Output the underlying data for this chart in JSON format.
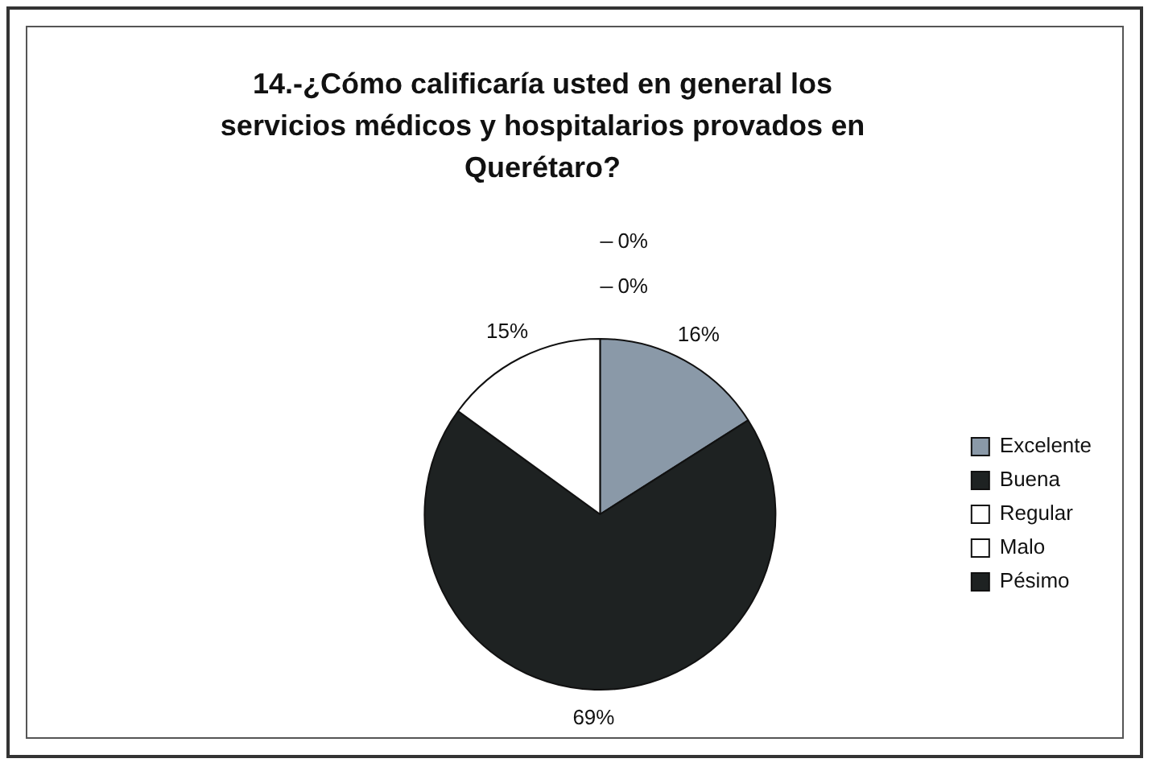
{
  "chart_data": {
    "type": "pie",
    "title": "14.-¿Cómo  calificaría usted en general los servicios médicos y hospitalarios provados en Querétaro?",
    "categories": [
      "Excelente",
      "Buena",
      "Regular",
      "Malo",
      "Pésimo"
    ],
    "values": [
      16,
      69,
      15,
      0,
      0
    ],
    "colors": [
      "#8a99a8",
      "#1e2222",
      "#ffffff",
      "#ffffff",
      "#1e2222"
    ],
    "value_labels": [
      "16%",
      "69%",
      "15%",
      "0%",
      "0%"
    ],
    "legend": "right"
  }
}
